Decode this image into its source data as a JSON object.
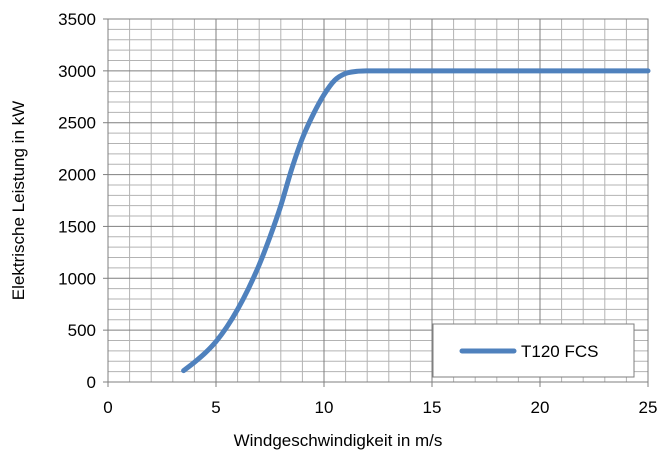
{
  "chart_data": {
    "type": "line",
    "title": "",
    "xlabel": "Windgeschwindigkeit in m/s",
    "ylabel": "Elektrische Leistung in kW",
    "xlim": [
      0,
      25
    ],
    "ylim": [
      0,
      3500
    ],
    "x_ticks": [
      0,
      5,
      10,
      15,
      20,
      25
    ],
    "y_ticks": [
      0,
      500,
      1000,
      1500,
      2000,
      2500,
      3000,
      3500
    ],
    "x_tick_labels": [
      "0",
      "5",
      "10",
      "15",
      "20",
      "25"
    ],
    "y_tick_labels": [
      "0",
      "500",
      "1000",
      "1500",
      "2000",
      "2500",
      "3000",
      "3500"
    ],
    "grid": true,
    "legend_position": "bottom-right",
    "series": [
      {
        "name": "T120 FCS",
        "color": "#4f81bd",
        "x": [
          3.5,
          4,
          4.5,
          5,
          5.5,
          6,
          6.5,
          7,
          7.5,
          8,
          8.5,
          9,
          9.5,
          10,
          10.5,
          11,
          11.5,
          12,
          13,
          14,
          15,
          16,
          17,
          18,
          19,
          20,
          21,
          22,
          23,
          24,
          25
        ],
        "y": [
          110,
          190,
          280,
          390,
          530,
          700,
          900,
          1130,
          1400,
          1700,
          2050,
          2350,
          2580,
          2770,
          2910,
          2975,
          2995,
          3000,
          3000,
          3000,
          3000,
          3000,
          3000,
          3000,
          3000,
          3000,
          3000,
          3000,
          3000,
          3000,
          3000
        ]
      }
    ]
  }
}
